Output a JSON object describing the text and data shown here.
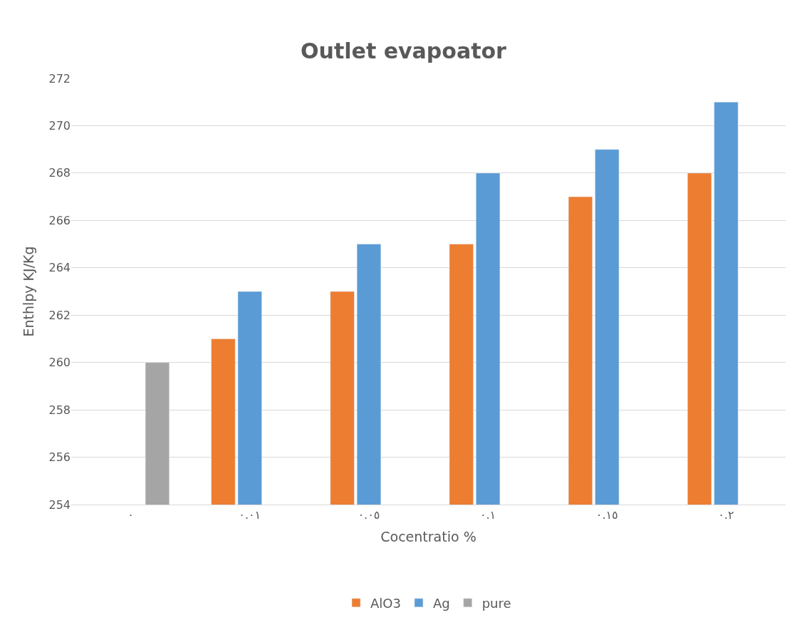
{
  "chart_data": {
    "type": "bar",
    "title": "Outlet evapoator",
    "xlabel": "Cocentratio %",
    "ylabel": "Enthlpy KJ/Kg",
    "categories": [
      "٠",
      "٠.٠١",
      "٠.٠٥",
      "٠.١",
      "٠.١٥",
      "٠.٢"
    ],
    "series": [
      {
        "name": "AlO3",
        "color": "#ed7d31",
        "values": [
          null,
          261,
          263,
          265,
          267,
          268
        ]
      },
      {
        "name": "Ag",
        "color": "#5b9bd5",
        "values": [
          null,
          263,
          265,
          268,
          269,
          271
        ]
      },
      {
        "name": "pure",
        "color": "#a5a5a5",
        "values": [
          260,
          null,
          null,
          null,
          null,
          null
        ]
      }
    ],
    "ylim": [
      254,
      272
    ],
    "yticks": [
      254,
      256,
      258,
      260,
      262,
      264,
      266,
      268,
      270,
      272
    ],
    "grid": "y",
    "legend": "bottom"
  }
}
